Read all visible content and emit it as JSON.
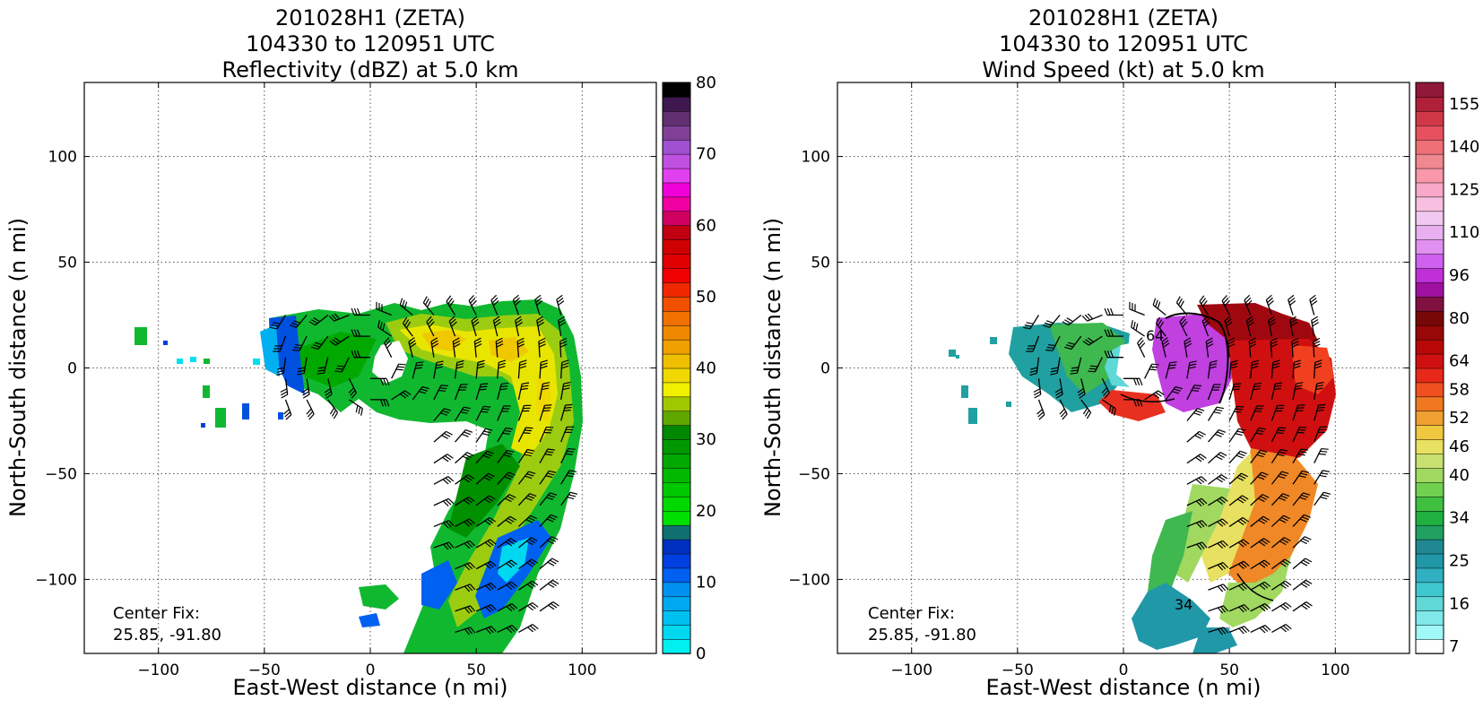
{
  "chart_data": [
    {
      "type": "heatmap",
      "title_lines": [
        "201028H1 (ZETA)",
        "104330 to 120951 UTC",
        "Reflectivity (dBZ) at 5.0 km"
      ],
      "xlabel": "East-West distance (n mi)",
      "ylabel": "North-South distance (n mi)",
      "xlim": [
        -135,
        135
      ],
      "ylim": [
        -135,
        135
      ],
      "xticks": [
        -100,
        -50,
        0,
        50,
        100
      ],
      "yticks": [
        -100,
        -50,
        0,
        50,
        100
      ],
      "grid": true,
      "annotation": [
        "Center Fix:",
        "25.85, -91.80"
      ],
      "colorbar": {
        "label": "dBZ",
        "min": 0,
        "max": 80,
        "ticks": [
          0,
          10,
          20,
          30,
          40,
          50,
          60,
          70,
          80
        ],
        "colors": [
          "#00f0f0",
          "#00d8f0",
          "#00c0f0",
          "#00a8f0",
          "#0090f0",
          "#0060f0",
          "#0040e0",
          "#0030c0",
          "#107070",
          "#00e000",
          "#00d800",
          "#00c800",
          "#00b800",
          "#00a800",
          "#009800",
          "#008800",
          "#60a800",
          "#a0c800",
          "#f0f000",
          "#f0d800",
          "#f0c000",
          "#f0a000",
          "#f08800",
          "#f07000",
          "#f05000",
          "#f02800",
          "#f00000",
          "#e00000",
          "#d00000",
          "#c00010",
          "#d00060",
          "#f000a0",
          "#f000d8",
          "#e040f0",
          "#c050e0",
          "#a050d0",
          "#804098",
          "#603070",
          "#401850",
          "#000000"
        ]
      },
      "wind_barbs": "asymmetric field; strongest flow on east and south sides"
    },
    {
      "type": "heatmap",
      "title_lines": [
        "201028H1 (ZETA)",
        "104330 to 120951 UTC",
        "Wind Speed (kt) at 5.0 km"
      ],
      "xlabel": "East-West distance (n mi)",
      "ylabel": "North-South distance (n mi)",
      "xlim": [
        -135,
        135
      ],
      "ylim": [
        -135,
        135
      ],
      "xticks": [
        -100,
        -50,
        0,
        50,
        100
      ],
      "yticks": [
        -100,
        -50,
        0,
        50,
        100
      ],
      "grid": true,
      "annotation": [
        "Center Fix:",
        "25.85, -91.80"
      ],
      "contour_labels": [
        "34",
        "64"
      ],
      "colorbar": {
        "label": "kt",
        "ticks": [
          "7",
          "16",
          "25",
          "34",
          "40",
          "46",
          "52",
          "58",
          "64",
          "80",
          "96",
          "110",
          "125",
          "140",
          "155"
        ],
        "colors": [
          "#ffffff",
          "#a0f8f8",
          "#80e8e8",
          "#60d8d8",
          "#40c8d0",
          "#30b0c0",
          "#2098a8",
          "#208890",
          "#20a060",
          "#20b040",
          "#40c040",
          "#70d050",
          "#a0d860",
          "#c8e070",
          "#e8e060",
          "#f0c840",
          "#f0a030",
          "#f07820",
          "#f05020",
          "#e82818",
          "#d01010",
          "#b80808",
          "#980808",
          "#780808",
          "#801040",
          "#a010a0",
          "#c030d8",
          "#d060f0",
          "#e090f0",
          "#e8b0f0",
          "#f0c8f0",
          "#f8c0e0",
          "#f8a8c8",
          "#f898a8",
          "#f08890",
          "#f07078",
          "#e85060",
          "#d03848",
          "#b02038",
          "#901838"
        ]
      }
    }
  ]
}
